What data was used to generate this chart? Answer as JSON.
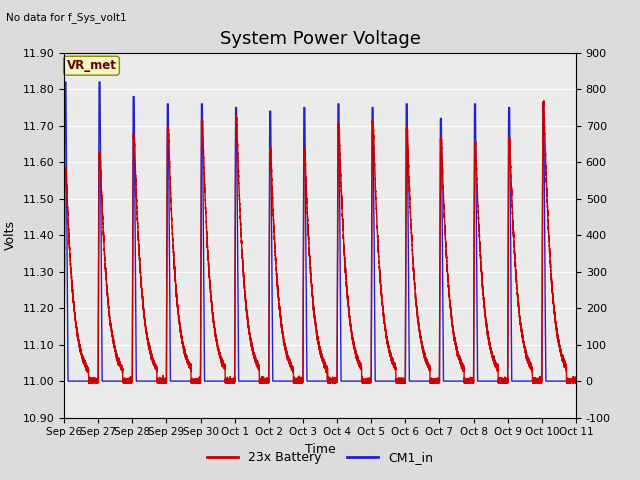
{
  "title": "System Power Voltage",
  "top_left_text": "No data for f_Sys_volt1",
  "ylabel_left": "Volts",
  "xlabel": "Time",
  "ylim_left": [
    10.9,
    11.9
  ],
  "ylim_right": [
    -100,
    900
  ],
  "yticks_left": [
    10.9,
    11.0,
    11.1,
    11.2,
    11.3,
    11.4,
    11.5,
    11.6,
    11.7,
    11.8,
    11.9
  ],
  "yticks_right": [
    -100,
    0,
    100,
    200,
    300,
    400,
    500,
    600,
    700,
    800,
    900
  ],
  "xtick_labels": [
    "Sep 26",
    "Sep 27",
    "Sep 28",
    "Sep 29",
    "Sep 30",
    "Oct 1",
    "Oct 2",
    "Oct 3",
    "Oct 4",
    "Oct 5",
    "Oct 6",
    "Oct 7",
    "Oct 8",
    "Oct 9",
    "Oct 10",
    "Oct 11"
  ],
  "legend_entries": [
    "23x Battery",
    "CM1_in"
  ],
  "legend_colors": [
    "#cc0000",
    "#2222cc"
  ],
  "vr_met_label": "VR_met",
  "bg_color": "#dcdcdc",
  "plot_bg_color": "#ebebeb",
  "grid_color": "#ffffff",
  "line_red_color": "#cc0000",
  "line_blue_color": "#2222cc",
  "red_trough": 11.0,
  "blue_trough": 11.0,
  "red_peak_per_cycle": [
    11.58,
    11.62,
    11.67,
    11.69,
    11.71,
    11.72,
    11.63,
    11.63,
    11.7,
    11.71,
    11.69,
    11.66,
    11.65,
    11.66,
    11.76
  ],
  "blue_peak_per_cycle": [
    11.82,
    11.82,
    11.78,
    11.76,
    11.76,
    11.75,
    11.74,
    11.75,
    11.76,
    11.75,
    11.76,
    11.72,
    11.76,
    11.75,
    11.76
  ],
  "title_fontsize": 13,
  "axis_fontsize": 9,
  "tick_fontsize": 8
}
